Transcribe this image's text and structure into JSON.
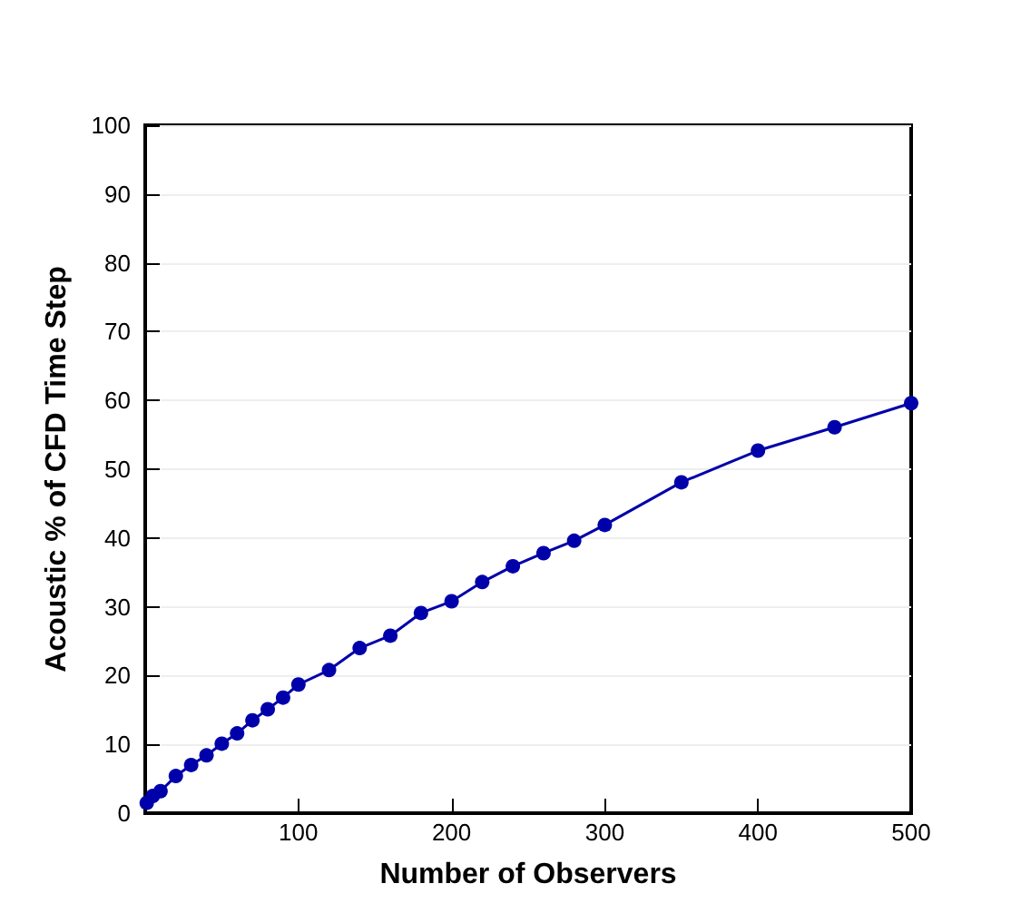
{
  "chart_data": {
    "type": "line",
    "xlabel": "Number of Observers",
    "ylabel": "Acoustic % of CFD Time Step",
    "x": [
      1,
      5,
      10,
      20,
      30,
      40,
      50,
      60,
      70,
      80,
      90,
      100,
      120,
      140,
      160,
      180,
      200,
      220,
      240,
      260,
      280,
      300,
      350,
      400,
      450,
      500
    ],
    "series": [
      {
        "color": "#0000aa",
        "values": [
          1.5,
          2.5,
          3.2,
          5.4,
          7.0,
          8.4,
          10.1,
          11.6,
          13.5,
          15.1,
          16.8,
          18.7,
          20.8,
          24.0,
          25.8,
          29.1,
          30.8,
          33.6,
          35.9,
          37.8,
          39.6,
          41.9,
          48.1,
          52.7,
          56.1,
          59.6
        ]
      }
    ],
    "xlim": [
      0,
      500
    ],
    "xticks": [
      100,
      200,
      300,
      400,
      500
    ],
    "ylim": [
      0,
      100
    ],
    "yticks": [
      0,
      10,
      20,
      30,
      40,
      50,
      60,
      70,
      80,
      90,
      100
    ],
    "grid": "y",
    "marker": "circle",
    "line_style": "solid"
  }
}
